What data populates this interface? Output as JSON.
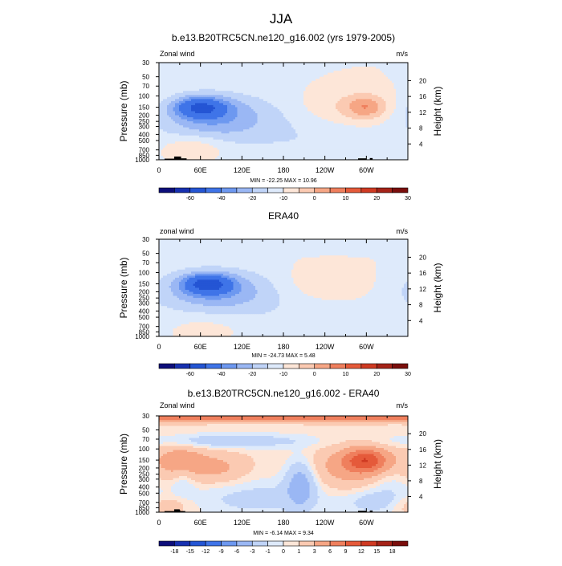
{
  "figure": {
    "title": "JJA"
  },
  "chart_data": [
    {
      "type": "heatmap",
      "title": "b.e13.B20TRC5CN.ne120_g16.002 (yrs 1979-2005)",
      "left_label": "Zonal wind",
      "right_label": "m/s",
      "xlabel": "",
      "ylabel": "Pressure (mb)",
      "y2label": "Height (km)",
      "x_ticks": [
        "0",
        "60E",
        "120E",
        "180",
        "120W",
        "60W"
      ],
      "x_tick_values": [
        0,
        60,
        120,
        180,
        240,
        300
      ],
      "xlim": [
        0,
        360
      ],
      "y_ticks": [
        30,
        50,
        70,
        100,
        150,
        200,
        250,
        300,
        400,
        500,
        700,
        850,
        1000
      ],
      "ylim": [
        1000,
        30
      ],
      "y2_ticks": [
        4,
        8,
        12,
        16,
        20
      ],
      "stats": "MIN = -22.25  MAX =  10.96",
      "min": -22.25,
      "max": 10.96,
      "colorbar_levels": [
        "-60",
        "-40",
        "-20",
        "-10",
        "0",
        "10",
        "20",
        "30"
      ],
      "background_level": 0,
      "features": [
        {
          "lon": 60,
          "p": 150,
          "value": -22,
          "sx": 26,
          "sy": 0.26
        },
        {
          "lon": 75,
          "p": 200,
          "value": -12,
          "sx": 55,
          "sy": 0.55
        },
        {
          "lon": 130,
          "p": 300,
          "value": -5,
          "sx": 90,
          "sy": 0.8
        },
        {
          "lon": 300,
          "p": 150,
          "value": 11,
          "sx": 20,
          "sy": 0.3
        },
        {
          "lon": 275,
          "p": 150,
          "value": 6,
          "sx": 50,
          "sy": 0.45
        },
        {
          "lon": 50,
          "p": 650,
          "value": 7,
          "sx": 30,
          "sy": 0.3
        },
        {
          "lon": 260,
          "p": 600,
          "value": -3,
          "sx": 60,
          "sy": 0.5
        }
      ],
      "topography": [
        {
          "lon0": 8,
          "lon1": 28,
          "p": 960
        },
        {
          "lon0": 22,
          "lon1": 32,
          "p": 890
        },
        {
          "lon0": 32,
          "lon1": 40,
          "p": 950
        },
        {
          "lon0": 288,
          "lon1": 300,
          "p": 950
        },
        {
          "lon0": 305,
          "lon1": 309,
          "p": 940
        }
      ]
    },
    {
      "type": "heatmap",
      "title": "ERA40",
      "left_label": "zonal wind",
      "right_label": "m/s",
      "xlabel": "",
      "ylabel": "Pressure (mb)",
      "y2label": "Height (km)",
      "x_ticks": [
        "0",
        "60E",
        "120E",
        "180",
        "120W",
        "60W"
      ],
      "x_tick_values": [
        0,
        60,
        120,
        180,
        240,
        300
      ],
      "xlim": [
        0,
        360
      ],
      "y_ticks": [
        30,
        50,
        70,
        100,
        150,
        200,
        250,
        300,
        400,
        500,
        700,
        850,
        1000
      ],
      "ylim": [
        1000,
        30
      ],
      "y2_ticks": [
        4,
        8,
        12,
        16,
        20
      ],
      "stats": "MIN = -24.73  MAX =   5.48",
      "min": -24.73,
      "max": 5.48,
      "colorbar_levels": [
        "-60",
        "-40",
        "-20",
        "-10",
        "0",
        "10",
        "20",
        "30"
      ],
      "background_level": 0,
      "features": [
        {
          "lon": 70,
          "p": 150,
          "value": -24,
          "sx": 24,
          "sy": 0.24
        },
        {
          "lon": 78,
          "p": 180,
          "value": -12,
          "sx": 55,
          "sy": 0.5
        },
        {
          "lon": 110,
          "p": 300,
          "value": -5,
          "sx": 85,
          "sy": 0.8
        },
        {
          "lon": 30,
          "p": 40,
          "value": -3,
          "sx": 400,
          "sy": 0.15
        },
        {
          "lon": 240,
          "p": 150,
          "value": 5,
          "sx": 45,
          "sy": 0.45
        },
        {
          "lon": 70,
          "p": 700,
          "value": 4,
          "sx": 40,
          "sy": 0.35
        },
        {
          "lon": 270,
          "p": 550,
          "value": -3,
          "sx": 55,
          "sy": 0.45
        }
      ],
      "topography": []
    },
    {
      "type": "heatmap",
      "title": "b.e13.B20TRC5CN.ne120_g16.002 - ERA40",
      "left_label": "Zonal wind",
      "right_label": "m/s",
      "xlabel": "",
      "ylabel": "Pressure (mb)",
      "y2label": "Height (km)",
      "x_ticks": [
        "0",
        "60E",
        "120E",
        "180",
        "120W",
        "60W"
      ],
      "x_tick_values": [
        0,
        60,
        120,
        180,
        240,
        300
      ],
      "xlim": [
        0,
        360
      ],
      "y_ticks": [
        30,
        50,
        70,
        100,
        150,
        200,
        250,
        300,
        400,
        500,
        700,
        850,
        1000
      ],
      "ylim": [
        1000,
        30
      ],
      "y2_ticks": [
        4,
        8,
        12,
        16,
        20
      ],
      "stats": "MIN =  -6.14  MAX =   9.34",
      "min": -6.14,
      "max": 9.34,
      "colorbar_levels": [
        "-18",
        "-15",
        "-12",
        "-9",
        "-6",
        "-3",
        "-1",
        "0",
        "1",
        "3",
        "6",
        "9",
        "12",
        "15",
        "18"
      ],
      "background_level": 0.5,
      "features": [
        {
          "lon": 180,
          "p": 30,
          "value": 8,
          "sx": 600,
          "sy": 0.14
        },
        {
          "lon": 100,
          "p": 75,
          "value": -3,
          "sx": 80,
          "sy": 0.18
        },
        {
          "lon": 300,
          "p": 150,
          "value": 9,
          "sx": 22,
          "sy": 0.3
        },
        {
          "lon": 285,
          "p": 200,
          "value": 4,
          "sx": 45,
          "sy": 0.5
        },
        {
          "lon": 30,
          "p": 160,
          "value": 4,
          "sx": 25,
          "sy": 0.45
        },
        {
          "lon": 85,
          "p": 200,
          "value": 3,
          "sx": 30,
          "sy": 0.4
        },
        {
          "lon": 140,
          "p": 600,
          "value": -2,
          "sx": 70,
          "sy": 0.5
        },
        {
          "lon": 205,
          "p": 350,
          "value": -5,
          "sx": 15,
          "sy": 0.6
        },
        {
          "lon": 35,
          "p": 300,
          "value": -2,
          "sx": 12,
          "sy": 0.4
        },
        {
          "lon": 310,
          "p": 700,
          "value": -2,
          "sx": 30,
          "sy": 0.3
        },
        {
          "lon": 330,
          "p": 300,
          "value": -2,
          "sx": 25,
          "sy": 0.6
        },
        {
          "lon": 10,
          "p": 800,
          "value": 2,
          "sx": 25,
          "sy": 0.25
        }
      ],
      "topography": [
        {
          "lon0": 8,
          "lon1": 22,
          "p": 960
        },
        {
          "lon0": 22,
          "lon1": 30,
          "p": 900
        },
        {
          "lon0": 30,
          "lon1": 38,
          "p": 960
        },
        {
          "lon0": 288,
          "lon1": 300,
          "p": 950
        },
        {
          "lon0": 305,
          "lon1": 309,
          "p": 940
        }
      ]
    }
  ],
  "colors": {
    "palette": [
      "#0d0e7a",
      "#1730b0",
      "#2455d4",
      "#3f74e8",
      "#6d98f0",
      "#9ab7f4",
      "#c0d4f8",
      "#deeafb",
      "#fde6d8",
      "#fbcab2",
      "#f6a685",
      "#ef7f5d",
      "#e55a3a",
      "#cf3a22",
      "#a52318",
      "#7a0e0c"
    ],
    "topography": "#000000"
  }
}
